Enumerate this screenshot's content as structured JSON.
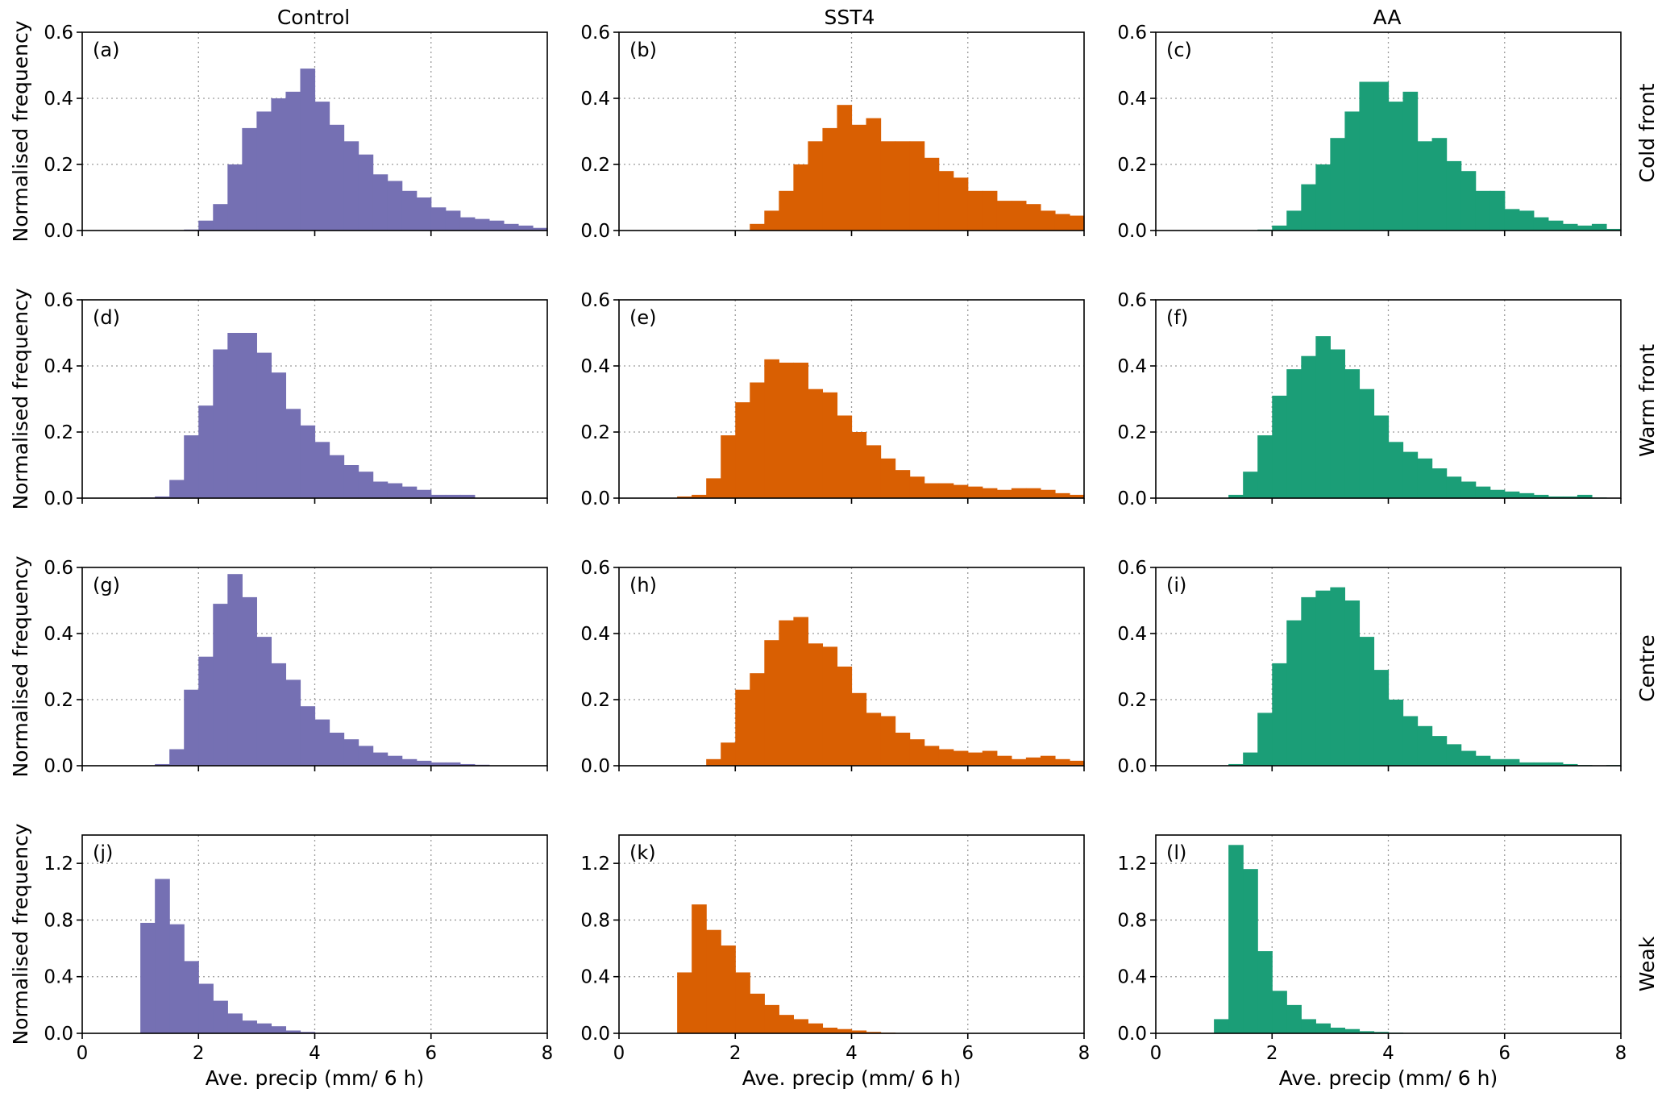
{
  "colors": {
    "Control": "#7570b3",
    "SST4": "#d95f02",
    "AA": "#1b9e77"
  },
  "chart_data": {
    "type": "bar",
    "description_layout": "4x3 grid of histograms; rows = feature type, columns = experiment",
    "columns": [
      "Control",
      "SST4",
      "AA"
    ],
    "rows": [
      "Cold front",
      "Warm front",
      "Centre",
      "Weak"
    ],
    "panel_labels": [
      "(a)",
      "(b)",
      "(c)",
      "(d)",
      "(e)",
      "(f)",
      "(g)",
      "(h)",
      "(i)",
      "(j)",
      "(k)",
      "(l)"
    ],
    "xlabel": "Ave. precip (mm/ 6 h)",
    "ylabel": "Normalised frequency",
    "xlim": [
      0,
      8
    ],
    "xticks": [
      "0",
      "2",
      "4",
      "6",
      "8"
    ],
    "ylim_rows": [
      [
        0,
        0.6
      ],
      [
        0,
        0.6
      ],
      [
        0,
        0.6
      ],
      [
        0,
        1.4
      ]
    ],
    "yticks_rows": [
      [
        "0.0",
        "0.2",
        "0.4",
        "0.6"
      ],
      [
        "0.0",
        "0.2",
        "0.4",
        "0.6"
      ],
      [
        "0.0",
        "0.2",
        "0.4",
        "0.6"
      ],
      [
        "0.0",
        "0.4",
        "0.8",
        "1.2"
      ]
    ],
    "yticks_values_rows": [
      [
        0,
        0.2,
        0.4,
        0.6
      ],
      [
        0,
        0.2,
        0.4,
        0.6
      ],
      [
        0,
        0.2,
        0.4,
        0.6
      ],
      [
        0,
        0.4,
        0.8,
        1.2
      ]
    ],
    "bin_width": 0.25,
    "grid": true,
    "panels": [
      {
        "start": 1.75,
        "values": [
          0.003,
          0.03,
          0.08,
          0.2,
          0.31,
          0.36,
          0.4,
          0.42,
          0.49,
          0.39,
          0.32,
          0.27,
          0.23,
          0.17,
          0.15,
          0.12,
          0.1,
          0.07,
          0.06,
          0.04,
          0.035,
          0.03,
          0.02,
          0.015,
          0.008,
          0.005
        ]
      },
      {
        "start": 2.25,
        "values": [
          0.02,
          0.06,
          0.12,
          0.2,
          0.27,
          0.31,
          0.38,
          0.32,
          0.34,
          0.27,
          0.27,
          0.27,
          0.22,
          0.18,
          0.16,
          0.12,
          0.12,
          0.09,
          0.09,
          0.08,
          0.06,
          0.05,
          0.045,
          0.045,
          0.035
        ]
      },
      {
        "start": 1.75,
        "values": [
          0.003,
          0.015,
          0.06,
          0.14,
          0.2,
          0.28,
          0.36,
          0.45,
          0.45,
          0.39,
          0.42,
          0.27,
          0.28,
          0.21,
          0.18,
          0.12,
          0.12,
          0.065,
          0.06,
          0.04,
          0.03,
          0.02,
          0.015,
          0.02,
          0.005,
          0.0,
          0.0,
          0.003
        ]
      },
      {
        "start": 1.0,
        "values": [
          0.002,
          0.005,
          0.055,
          0.19,
          0.28,
          0.45,
          0.5,
          0.5,
          0.44,
          0.38,
          0.27,
          0.22,
          0.17,
          0.13,
          0.1,
          0.08,
          0.05,
          0.045,
          0.035,
          0.025,
          0.01,
          0.01,
          0.01
        ]
      },
      {
        "start": 1.0,
        "values": [
          0.005,
          0.01,
          0.06,
          0.19,
          0.29,
          0.35,
          0.42,
          0.41,
          0.41,
          0.33,
          0.32,
          0.25,
          0.2,
          0.16,
          0.12,
          0.085,
          0.065,
          0.045,
          0.045,
          0.04,
          0.035,
          0.03,
          0.025,
          0.03,
          0.03,
          0.025,
          0.015,
          0.01
        ]
      },
      {
        "start": 1.25,
        "values": [
          0.01,
          0.08,
          0.19,
          0.31,
          0.39,
          0.43,
          0.49,
          0.45,
          0.39,
          0.33,
          0.25,
          0.17,
          0.14,
          0.12,
          0.09,
          0.065,
          0.05,
          0.035,
          0.025,
          0.02,
          0.015,
          0.01,
          0.005,
          0.005,
          0.01,
          0.002
        ]
      },
      {
        "start": 1.25,
        "values": [
          0.005,
          0.05,
          0.23,
          0.33,
          0.49,
          0.58,
          0.51,
          0.39,
          0.31,
          0.26,
          0.18,
          0.14,
          0.1,
          0.08,
          0.06,
          0.04,
          0.03,
          0.02,
          0.015,
          0.01,
          0.01,
          0.005,
          0.003
        ]
      },
      {
        "start": 1.5,
        "values": [
          0.02,
          0.07,
          0.23,
          0.28,
          0.38,
          0.44,
          0.45,
          0.37,
          0.36,
          0.3,
          0.22,
          0.16,
          0.15,
          0.1,
          0.08,
          0.06,
          0.05,
          0.045,
          0.04,
          0.045,
          0.03,
          0.02,
          0.025,
          0.03,
          0.02,
          0.015,
          0.015
        ]
      },
      {
        "start": 1.25,
        "values": [
          0.005,
          0.04,
          0.16,
          0.31,
          0.44,
          0.51,
          0.53,
          0.54,
          0.5,
          0.39,
          0.29,
          0.2,
          0.15,
          0.12,
          0.09,
          0.065,
          0.045,
          0.03,
          0.02,
          0.02,
          0.01,
          0.01,
          0.01,
          0.005,
          0.002,
          0.0,
          0.002
        ]
      },
      {
        "start": 1.0,
        "values": [
          0.78,
          1.09,
          0.77,
          0.51,
          0.35,
          0.23,
          0.14,
          0.09,
          0.07,
          0.05,
          0.02,
          0.01,
          0.005,
          0.003
        ]
      },
      {
        "start": 1.0,
        "values": [
          0.43,
          0.91,
          0.73,
          0.62,
          0.43,
          0.28,
          0.2,
          0.13,
          0.1,
          0.07,
          0.04,
          0.03,
          0.02,
          0.01,
          0.005,
          0.003
        ]
      },
      {
        "start": 1.0,
        "values": [
          0.1,
          1.33,
          1.16,
          0.58,
          0.3,
          0.2,
          0.1,
          0.07,
          0.04,
          0.03,
          0.015,
          0.01,
          0.005,
          0.003
        ]
      }
    ]
  }
}
